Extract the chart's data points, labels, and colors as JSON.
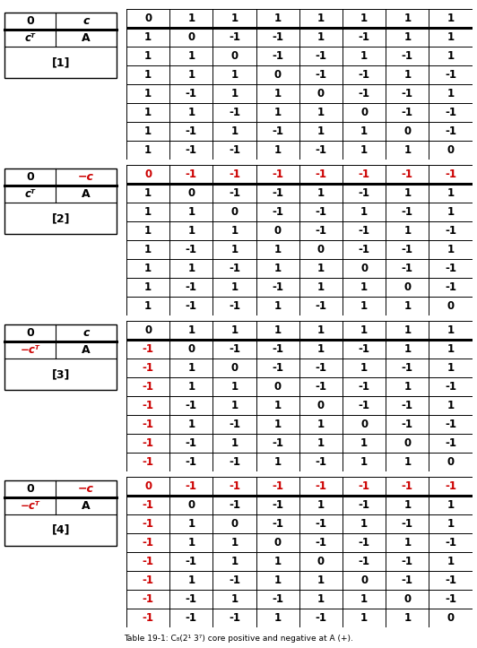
{
  "blocks": [
    {
      "label_num": "[1]",
      "top_left": "0",
      "top_right": "c",
      "bot_left": "cᵀ",
      "bot_right": "A",
      "top_right_red": false,
      "bot_left_red": false,
      "first_row_red": false,
      "first_col_red": false,
      "matrix": [
        [
          0,
          1,
          1,
          1,
          1,
          1,
          1,
          1
        ],
        [
          1,
          0,
          -1,
          -1,
          1,
          -1,
          1,
          1
        ],
        [
          1,
          1,
          0,
          -1,
          -1,
          1,
          -1,
          1
        ],
        [
          1,
          1,
          1,
          0,
          -1,
          -1,
          1,
          -1
        ],
        [
          1,
          -1,
          1,
          1,
          0,
          -1,
          -1,
          1
        ],
        [
          1,
          1,
          -1,
          1,
          1,
          0,
          -1,
          -1
        ],
        [
          1,
          -1,
          1,
          -1,
          1,
          1,
          0,
          -1
        ],
        [
          1,
          -1,
          -1,
          1,
          -1,
          1,
          1,
          0
        ]
      ]
    },
    {
      "label_num": "[2]",
      "top_left": "0",
      "top_right": "−c",
      "bot_left": "cᵀ",
      "bot_right": "A",
      "top_right_red": true,
      "bot_left_red": false,
      "first_row_red": true,
      "first_col_red": false,
      "matrix": [
        [
          0,
          -1,
          -1,
          -1,
          -1,
          -1,
          -1,
          -1
        ],
        [
          1,
          0,
          -1,
          -1,
          1,
          -1,
          1,
          1
        ],
        [
          1,
          1,
          0,
          -1,
          -1,
          1,
          -1,
          1
        ],
        [
          1,
          1,
          1,
          0,
          -1,
          -1,
          1,
          -1
        ],
        [
          1,
          -1,
          1,
          1,
          0,
          -1,
          -1,
          1
        ],
        [
          1,
          1,
          -1,
          1,
          1,
          0,
          -1,
          -1
        ],
        [
          1,
          -1,
          1,
          -1,
          1,
          1,
          0,
          -1
        ],
        [
          1,
          -1,
          -1,
          1,
          -1,
          1,
          1,
          0
        ]
      ]
    },
    {
      "label_num": "[3]",
      "top_left": "0",
      "top_right": "c",
      "bot_left": "−cᵀ",
      "bot_right": "A",
      "top_right_red": false,
      "bot_left_red": true,
      "first_row_red": false,
      "first_col_red": true,
      "matrix": [
        [
          0,
          1,
          1,
          1,
          1,
          1,
          1,
          1
        ],
        [
          -1,
          0,
          -1,
          -1,
          1,
          -1,
          1,
          1
        ],
        [
          -1,
          1,
          0,
          -1,
          -1,
          1,
          -1,
          1
        ],
        [
          -1,
          1,
          1,
          0,
          -1,
          -1,
          1,
          -1
        ],
        [
          -1,
          -1,
          1,
          1,
          0,
          -1,
          -1,
          1
        ],
        [
          -1,
          1,
          -1,
          1,
          1,
          0,
          -1,
          -1
        ],
        [
          -1,
          -1,
          1,
          -1,
          1,
          1,
          0,
          -1
        ],
        [
          -1,
          -1,
          -1,
          1,
          -1,
          1,
          1,
          0
        ]
      ]
    },
    {
      "label_num": "[4]",
      "top_left": "0",
      "top_right": "−c",
      "bot_left": "−cᵀ",
      "bot_right": "A",
      "top_right_red": true,
      "bot_left_red": true,
      "first_row_red": true,
      "first_col_red": true,
      "matrix": [
        [
          0,
          -1,
          -1,
          -1,
          -1,
          -1,
          -1,
          -1
        ],
        [
          -1,
          0,
          -1,
          -1,
          1,
          -1,
          1,
          1
        ],
        [
          -1,
          1,
          0,
          -1,
          -1,
          1,
          -1,
          1
        ],
        [
          -1,
          1,
          1,
          0,
          -1,
          -1,
          1,
          -1
        ],
        [
          -1,
          -1,
          1,
          1,
          0,
          -1,
          -1,
          1
        ],
        [
          -1,
          1,
          -1,
          1,
          1,
          0,
          -1,
          -1
        ],
        [
          -1,
          -1,
          1,
          -1,
          1,
          1,
          0,
          -1
        ],
        [
          -1,
          -1,
          -1,
          1,
          -1,
          1,
          1,
          0
        ]
      ]
    }
  ],
  "caption": "Table 19-1: C₈(2¹ 3⁷) core positive and negative at A (+).",
  "red_color": "#cc0000",
  "black_color": "#000000",
  "fig_width": 5.32,
  "fig_height": 7.23,
  "dpi": 100
}
